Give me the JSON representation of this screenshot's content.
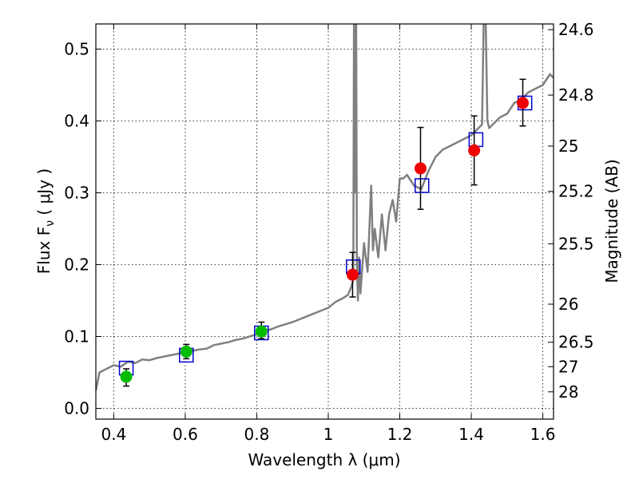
{
  "chart_data": {
    "type": "scatter",
    "xlabel": "Wavelength  λ (μm)",
    "ylabel": "Flux  F",
    "ylabel_sub": "ν",
    "ylabel_unit": "  ( μJy )",
    "y2label": "Magnitude (AB)",
    "xlim": [
      0.35,
      1.63
    ],
    "ylim": [
      -0.015,
      0.535
    ],
    "grid": true,
    "x_ticks": [
      0.4,
      0.6,
      0.8,
      1.0,
      1.2,
      1.4,
      1.6
    ],
    "x_tick_labels": [
      "0.4",
      "0.6",
      "0.8",
      "1",
      "1.2",
      "1.4",
      "1.6"
    ],
    "y_ticks": [
      0.0,
      0.1,
      0.2,
      0.3,
      0.4,
      0.5
    ],
    "y_tick_labels": [
      "0.0",
      "0.1",
      "0.2",
      "0.3",
      "0.4",
      "0.5"
    ],
    "magnitude_ticks": [
      {
        "label": "24.6",
        "flux": 0.527
      },
      {
        "label": "24.8",
        "flux": 0.436
      },
      {
        "label": "25",
        "flux": 0.365
      },
      {
        "label": "25.2",
        "flux": 0.302
      },
      {
        "label": "25.5",
        "flux": 0.229
      },
      {
        "label": "26",
        "flux": 0.145
      },
      {
        "label": "26.5",
        "flux": 0.092
      },
      {
        "label": "27",
        "flux": 0.058
      },
      {
        "label": "28",
        "flux": 0.023
      }
    ],
    "colors": {
      "spectrum": "#808080",
      "green_points": "#00bb00",
      "red_points": "#ee0000",
      "boxes": "#0000cc",
      "errorbars": "#000000"
    },
    "series": [
      {
        "kind": "observed",
        "color": "green",
        "x": [
          0.435,
          0.603,
          0.813
        ],
        "y": [
          0.044,
          0.079,
          0.107
        ],
        "yerr_low": [
          0.013,
          0.01,
          0.01
        ],
        "yerr_high": [
          0.011,
          0.01,
          0.013
        ]
      },
      {
        "kind": "observed",
        "color": "red",
        "x": [
          1.068,
          1.258,
          1.408,
          1.544
        ],
        "y": [
          0.186,
          0.334,
          0.359,
          0.425
        ],
        "yerr_low": [
          0.031,
          0.057,
          0.048,
          0.032
        ],
        "yerr_high": [
          0.031,
          0.057,
          0.048,
          0.033
        ]
      },
      {
        "kind": "model_boxes",
        "x": [
          0.435,
          0.603,
          0.813,
          1.07,
          1.262,
          1.413,
          1.55
        ],
        "y": [
          0.056,
          0.074,
          0.105,
          0.197,
          0.31,
          0.374,
          0.425
        ]
      },
      {
        "kind": "spectrum",
        "x": [
          0.35,
          0.36,
          0.38,
          0.4,
          0.42,
          0.44,
          0.46,
          0.48,
          0.5,
          0.52,
          0.54,
          0.56,
          0.58,
          0.6,
          0.62,
          0.64,
          0.66,
          0.68,
          0.7,
          0.72,
          0.74,
          0.76,
          0.78,
          0.8,
          0.82,
          0.84,
          0.86,
          0.88,
          0.9,
          0.92,
          0.94,
          0.96,
          0.98,
          1.0,
          1.02,
          1.04,
          1.055,
          1.065,
          1.07,
          1.072,
          1.074,
          1.078,
          1.08,
          1.083,
          1.086,
          1.09,
          1.1,
          1.11,
          1.12,
          1.125,
          1.13,
          1.14,
          1.15,
          1.16,
          1.17,
          1.18,
          1.19,
          1.2,
          1.21,
          1.22,
          1.24,
          1.26,
          1.28,
          1.3,
          1.32,
          1.34,
          1.36,
          1.38,
          1.4,
          1.42,
          1.43,
          1.435,
          1.44,
          1.445,
          1.45,
          1.46,
          1.48,
          1.5,
          1.52,
          1.54,
          1.56,
          1.58,
          1.6,
          1.62,
          1.63
        ],
        "y": [
          0.025,
          0.05,
          0.055,
          0.06,
          0.058,
          0.065,
          0.063,
          0.068,
          0.067,
          0.07,
          0.072,
          0.074,
          0.076,
          0.078,
          0.08,
          0.082,
          0.083,
          0.088,
          0.09,
          0.092,
          0.095,
          0.097,
          0.1,
          0.103,
          0.108,
          0.11,
          0.114,
          0.117,
          0.12,
          0.124,
          0.128,
          0.132,
          0.136,
          0.14,
          0.148,
          0.153,
          0.158,
          0.17,
          0.18,
          0.55,
          0.3,
          0.55,
          0.2,
          0.15,
          0.21,
          0.16,
          0.23,
          0.19,
          0.31,
          0.22,
          0.25,
          0.21,
          0.27,
          0.22,
          0.27,
          0.29,
          0.26,
          0.32,
          0.32,
          0.325,
          0.31,
          0.305,
          0.33,
          0.35,
          0.36,
          0.365,
          0.37,
          0.375,
          0.38,
          0.39,
          0.395,
          0.55,
          0.55,
          0.4,
          0.39,
          0.395,
          0.405,
          0.41,
          0.425,
          0.43,
          0.44,
          0.445,
          0.45,
          0.465,
          0.46
        ]
      }
    ]
  }
}
